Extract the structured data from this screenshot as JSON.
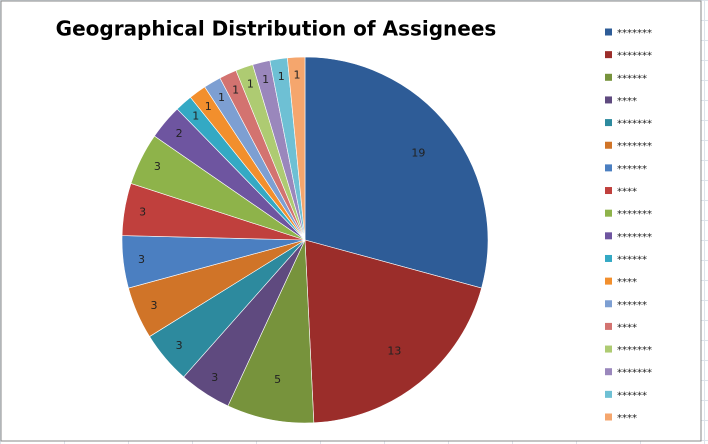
{
  "chart_data": {
    "type": "pie",
    "title": "Geographical Distribution of Assignees",
    "categories": [
      "*******",
      "*******",
      "******",
      "****",
      "*******",
      "*******",
      "******",
      "****",
      "*******",
      "*******",
      "******",
      "****",
      "******",
      "****",
      "*******",
      "*******",
      "******",
      "****"
    ],
    "values": [
      19,
      13,
      5,
      3,
      3,
      3,
      3,
      3,
      3,
      2,
      1,
      1,
      1,
      1,
      1,
      1,
      1,
      1
    ],
    "colors": [
      "#2E5C97",
      "#9B2D2A",
      "#77933C",
      "#5F4A7F",
      "#2D8A9E",
      "#D07428",
      "#4B7FC1",
      "#C0403D",
      "#8EB34A",
      "#6E55A0",
      "#34A9C4",
      "#F28F2D",
      "#7D9FD2",
      "#D37370",
      "#AECB72",
      "#9A87BC",
      "#6EC0D4",
      "#F5A66D"
    ],
    "legend": "right"
  }
}
